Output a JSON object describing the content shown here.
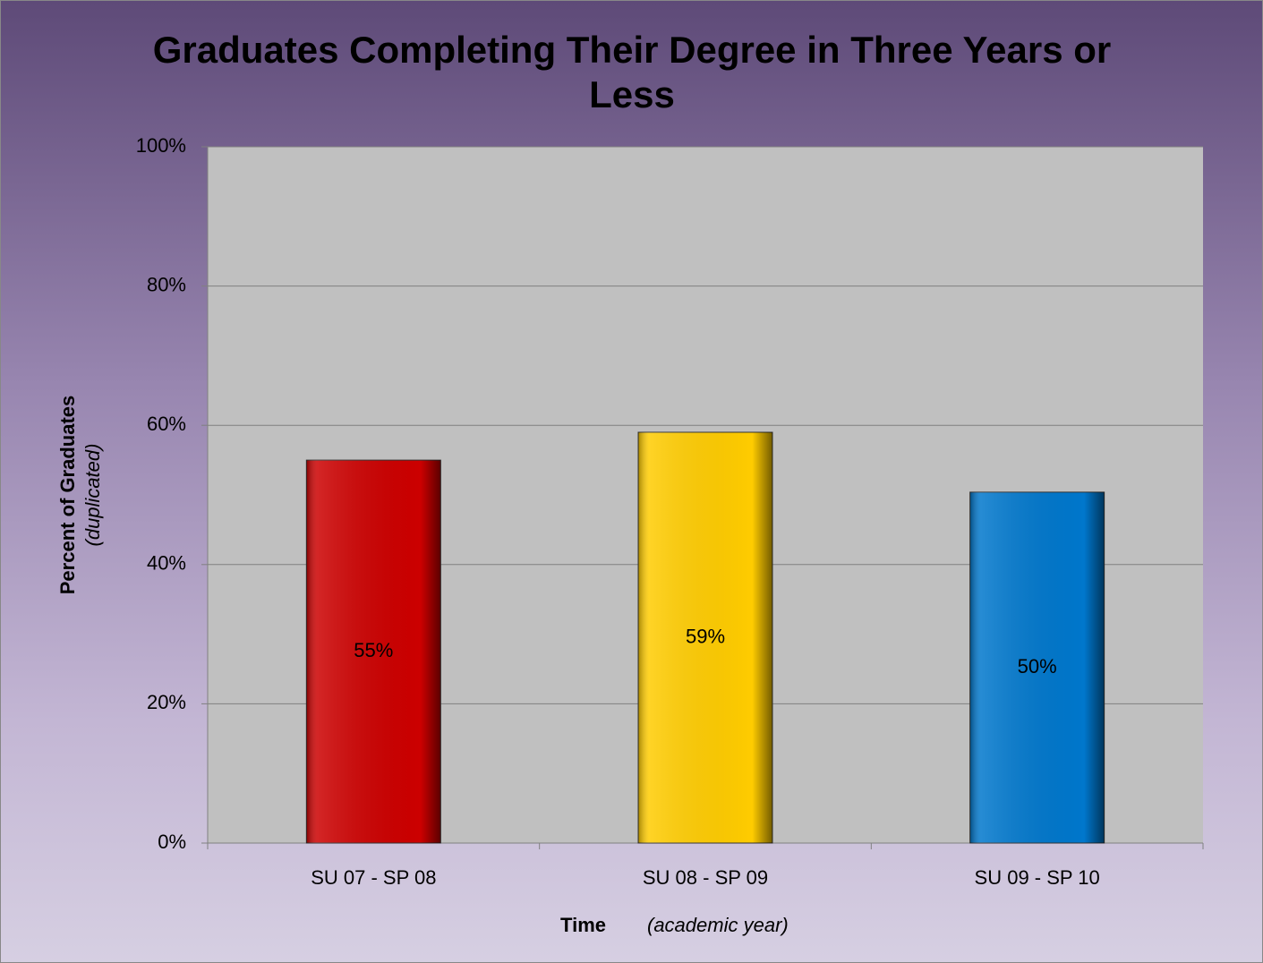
{
  "chart_data": {
    "type": "bar",
    "title": "Graduates Completing Their Degree in Three Years or Less",
    "y_label": "Percent of Graduates",
    "y_label_note": "(duplicated)",
    "x_label": "Time",
    "x_label_note": "(academic year)",
    "categories": [
      "SU 07 - SP 08",
      "SU 08 - SP 09",
      "SU 09 - SP 10"
    ],
    "values": [
      55,
      59,
      50.4
    ],
    "value_labels": [
      "55%",
      "59%",
      "50%"
    ],
    "colors": [
      "#cc0000",
      "#ffcc00",
      "#0077cc"
    ],
    "ylim": [
      0,
      100
    ],
    "yticks": [
      {
        "value": 0,
        "label": "0%"
      },
      {
        "value": 20,
        "label": "20%"
      },
      {
        "value": 40,
        "label": "40%"
      },
      {
        "value": 60,
        "label": "60%"
      },
      {
        "value": 80,
        "label": "80%"
      },
      {
        "value": 100,
        "label": "100%"
      }
    ],
    "grid": true
  }
}
